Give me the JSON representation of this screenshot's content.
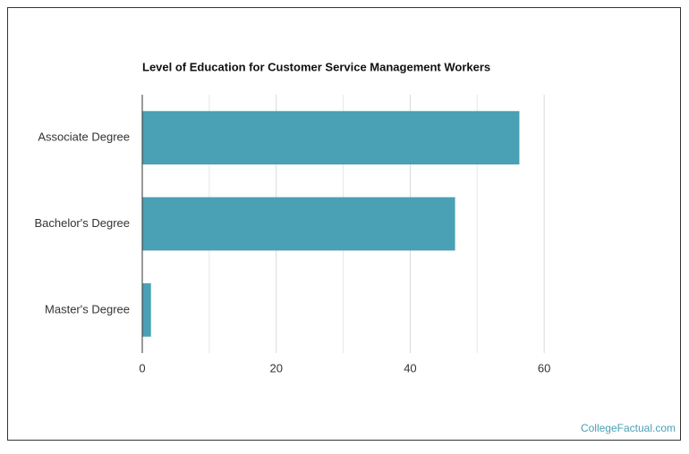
{
  "chart_data": {
    "type": "bar",
    "orientation": "horizontal",
    "title": "Level of Education for Customer Service Management Workers",
    "categories": [
      "Associate Degree",
      "Bachelor's Degree",
      "Master's Degree"
    ],
    "values": [
      56.3,
      46.7,
      1.3
    ],
    "color": "#4aa0b5",
    "xlim": [
      0,
      70
    ],
    "xticks": [
      0,
      20,
      40,
      60
    ],
    "minor_xticks": [
      10,
      30,
      50
    ],
    "grid": true,
    "source": "CollegeFactual.com"
  }
}
